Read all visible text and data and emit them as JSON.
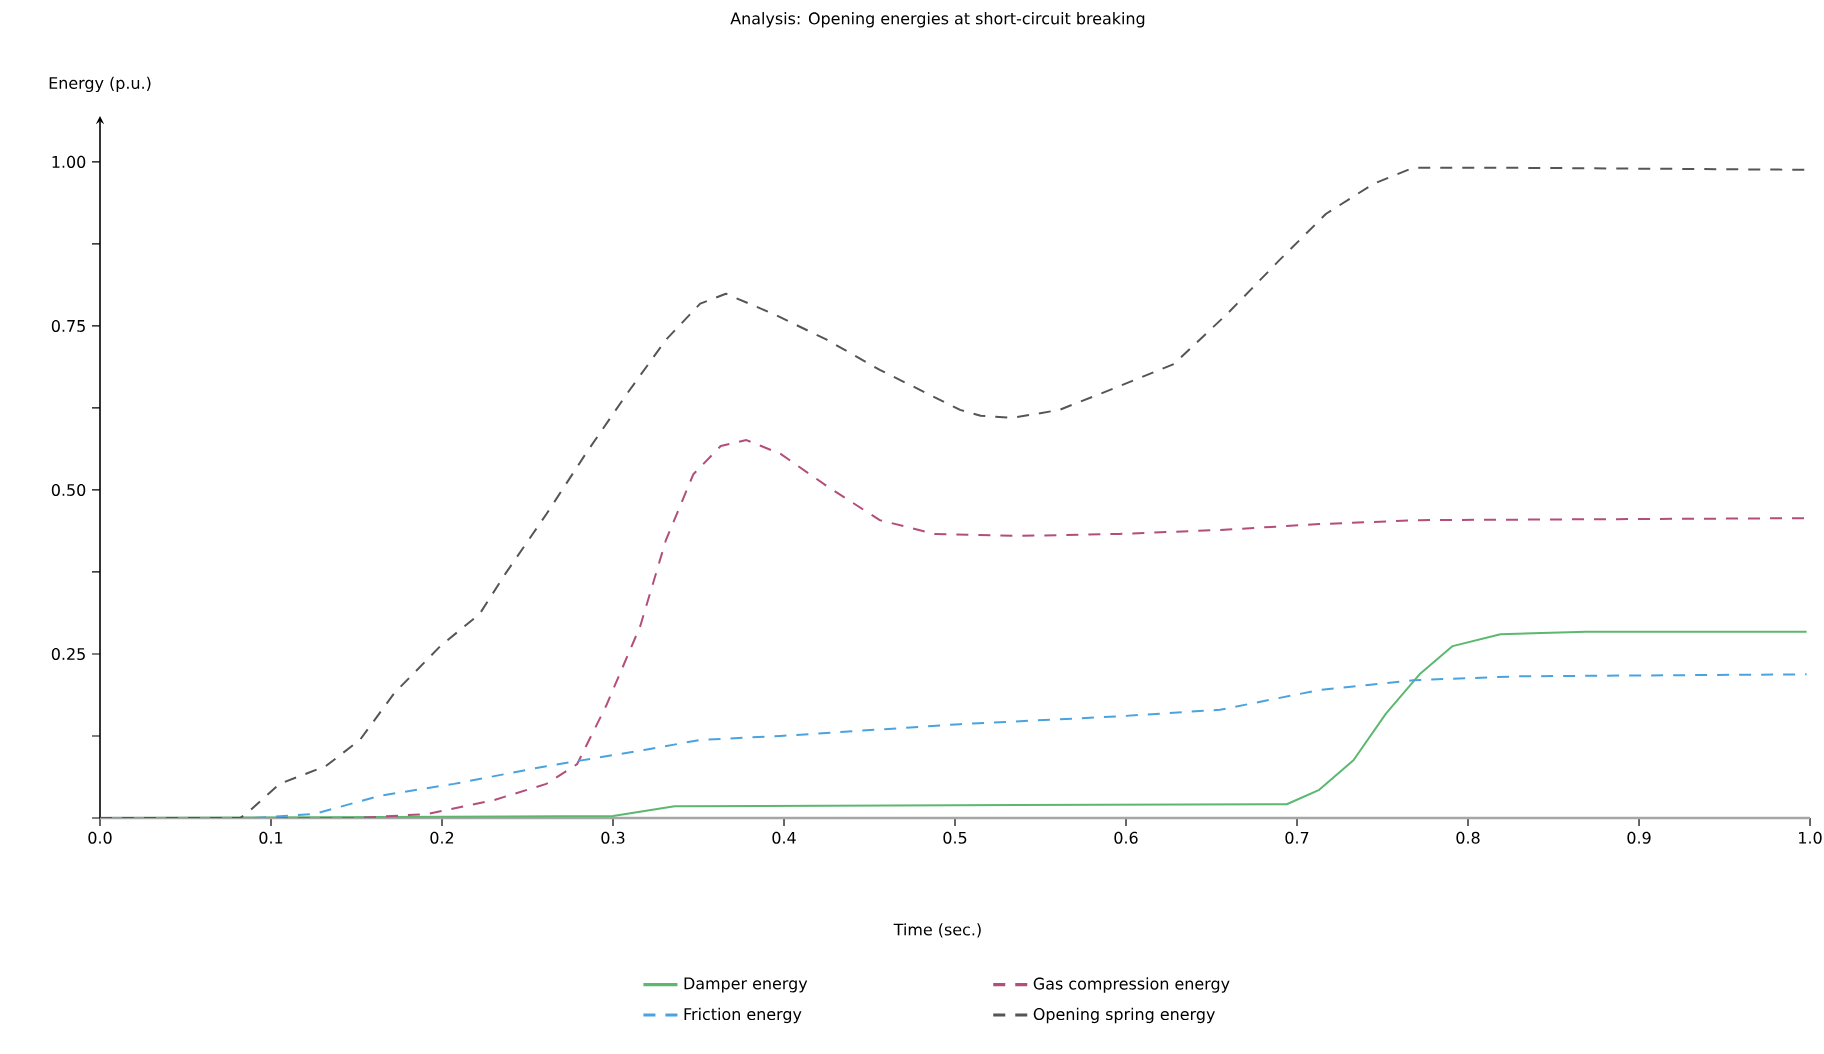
{
  "chart_data": {
    "type": "line",
    "title": "Analysis: Opening energies at short-circuit breaking",
    "xlabel": "Time (sec.)",
    "ylabel": "Energy (p.u.)",
    "xlim": [
      0,
      1.0
    ],
    "ylim": [
      0,
      1.07
    ],
    "xticks": [
      {
        "value": 0,
        "label": "0.0"
      },
      {
        "value": 0.1,
        "label": "0.1"
      },
      {
        "value": 0.2,
        "label": "0.2"
      },
      {
        "value": 0.3,
        "label": "0.3"
      },
      {
        "value": 0.4,
        "label": "0.4"
      },
      {
        "value": 0.5,
        "label": "0.5"
      },
      {
        "value": 0.6,
        "label": "0.6"
      },
      {
        "value": 0.7,
        "label": "0.7"
      },
      {
        "value": 0.8,
        "label": "0.8"
      },
      {
        "value": 0.9,
        "label": "0.9"
      },
      {
        "value": 1.0,
        "label": "1.0"
      }
    ],
    "yticks": [
      {
        "value": 0,
        "label": null
      },
      {
        "value": 0.125,
        "label": null
      },
      {
        "value": 0.25,
        "label": "0.25"
      },
      {
        "value": 0.375,
        "label": null
      },
      {
        "value": 0.5,
        "label": "0.50"
      },
      {
        "value": 0.625,
        "label": null
      },
      {
        "value": 0.75,
        "label": "0.75"
      },
      {
        "value": 0.875,
        "label": null
      },
      {
        "value": 1.0,
        "label": "1.00"
      }
    ],
    "legend": "bottom",
    "series": [
      {
        "name": "Damper energy",
        "color": "#5cb870",
        "line_style": "solid",
        "x": [
          0,
          0.3,
          0.336,
          0.694,
          0.713,
          0.733,
          0.752,
          0.772,
          0.791,
          0.819,
          0.869,
          0.998
        ],
        "values": [
          0,
          0.003,
          0.018,
          0.021,
          0.043,
          0.088,
          0.159,
          0.22,
          0.262,
          0.28,
          0.284,
          0.284
        ]
      },
      {
        "name": "Gas compression energy",
        "color": "#b34d7a",
        "line_style": "dashed",
        "x": [
          0,
          0.15,
          0.191,
          0.23,
          0.261,
          0.279,
          0.296,
          0.316,
          0.331,
          0.347,
          0.363,
          0.378,
          0.398,
          0.425,
          0.456,
          0.488,
          0.538,
          0.596,
          0.655,
          0.713,
          0.772,
          0.998
        ],
        "values": [
          0,
          0,
          0.006,
          0.027,
          0.052,
          0.082,
          0.171,
          0.293,
          0.424,
          0.524,
          0.567,
          0.576,
          0.555,
          0.506,
          0.454,
          0.433,
          0.43,
          0.433,
          0.439,
          0.448,
          0.454,
          0.457
        ]
      },
      {
        "name": "Friction energy",
        "color": "#4aa3df",
        "line_style": "dashed",
        "x": [
          0,
          0.09,
          0.125,
          0.164,
          0.207,
          0.261,
          0.319,
          0.351,
          0.398,
          0.503,
          0.596,
          0.655,
          0.713,
          0.768,
          0.83,
          0.998
        ],
        "values": [
          0,
          0,
          0.006,
          0.034,
          0.052,
          0.079,
          0.104,
          0.119,
          0.125,
          0.143,
          0.155,
          0.165,
          0.195,
          0.21,
          0.216,
          0.219
        ]
      },
      {
        "name": "Opening spring energy",
        "color": "#555555",
        "line_style": "dashed",
        "x": [
          0,
          0.082,
          0.088,
          0.105,
          0.132,
          0.152,
          0.172,
          0.199,
          0.222,
          0.237,
          0.261,
          0.284,
          0.308,
          0.331,
          0.351,
          0.366,
          0.394,
          0.425,
          0.456,
          0.503,
          0.515,
          0.534,
          0.561,
          0.596,
          0.628,
          0.659,
          0.69,
          0.717,
          0.745,
          0.768,
          0.83,
          0.998
        ],
        "values": [
          0,
          0,
          0.012,
          0.052,
          0.079,
          0.119,
          0.19,
          0.262,
          0.311,
          0.372,
          0.463,
          0.555,
          0.646,
          0.729,
          0.784,
          0.799,
          0.768,
          0.729,
          0.683,
          0.622,
          0.613,
          0.61,
          0.622,
          0.658,
          0.692,
          0.768,
          0.851,
          0.921,
          0.967,
          0.991,
          0.991,
          0.988
        ]
      }
    ]
  }
}
